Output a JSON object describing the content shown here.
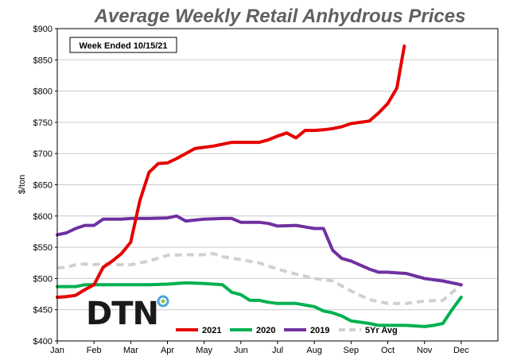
{
  "chart_data": {
    "type": "line",
    "title": "Average Weekly Retail Anhydrous Prices",
    "annotation": "Week Ended 10/15/21",
    "ylabel": "$/ton",
    "xlabel": "",
    "ylim": [
      400,
      900
    ],
    "yticks": [
      "$400",
      "$450",
      "$500",
      "$550",
      "$600",
      "$650",
      "$700",
      "$750",
      "$800",
      "$850",
      "$900"
    ],
    "xticks": [
      "Jan",
      "Feb",
      "Mar",
      "Apr",
      "May",
      "Jun",
      "Jul",
      "Aug",
      "Sep",
      "Oct",
      "Nov",
      "Dec"
    ],
    "grid": "horizontal",
    "legend_position": "bottom-right",
    "series": [
      {
        "name": "2021",
        "color": "#e60000",
        "style": "solid",
        "x": [
          1.0,
          1.25,
          1.5,
          1.75,
          2.0,
          2.25,
          2.5,
          2.75,
          3.0,
          3.25,
          3.5,
          3.75,
          4.0,
          4.25,
          4.5,
          4.75,
          5.0,
          5.25,
          5.5,
          5.75,
          6.0,
          6.25,
          6.5,
          6.75,
          7.0,
          7.25,
          7.5,
          7.75,
          8.0,
          8.25,
          8.5,
          8.75,
          9.0,
          9.25,
          9.5,
          9.75,
          10.0,
          10.25,
          10.45
        ],
        "values": [
          470,
          471,
          473,
          482,
          490,
          518,
          528,
          540,
          558,
          625,
          670,
          684,
          685,
          692,
          700,
          708,
          710,
          712,
          715,
          718,
          718,
          718,
          718,
          722,
          728,
          733,
          725,
          737,
          737,
          738,
          740,
          743,
          748,
          750,
          752,
          765,
          780,
          805,
          872
        ]
      },
      {
        "name": "2020",
        "color": "#00b050",
        "style": "solid",
        "x": [
          1.0,
          1.25,
          1.5,
          1.75,
          2.0,
          2.5,
          3.0,
          3.5,
          4.0,
          4.5,
          5.0,
          5.5,
          5.75,
          6.0,
          6.25,
          6.5,
          6.75,
          7.0,
          7.5,
          8.0,
          8.25,
          8.5,
          8.75,
          9.0,
          9.25,
          9.5,
          9.75,
          10.0,
          10.5,
          11.0,
          11.25,
          11.5,
          11.75,
          12.0
        ],
        "values": [
          487,
          487,
          487,
          490,
          490,
          490,
          490,
          490,
          491,
          493,
          492,
          490,
          478,
          474,
          465,
          465,
          462,
          460,
          460,
          455,
          448,
          445,
          440,
          432,
          430,
          428,
          425,
          425,
          425,
          423,
          425,
          428,
          450,
          470
        ]
      },
      {
        "name": "2019",
        "color": "#7030a0",
        "style": "solid",
        "x": [
          1.0,
          1.25,
          1.5,
          1.75,
          2.0,
          2.25,
          2.5,
          2.75,
          3.0,
          3.5,
          4.0,
          4.25,
          4.5,
          5.0,
          5.5,
          5.75,
          6.0,
          6.5,
          6.75,
          7.0,
          7.5,
          8.0,
          8.25,
          8.5,
          8.75,
          9.0,
          9.5,
          9.75,
          10.0,
          10.5,
          11.0,
          11.25,
          11.5,
          12.0
        ],
        "values": [
          570,
          573,
          580,
          585,
          585,
          595,
          595,
          595,
          596,
          596,
          597,
          600,
          592,
          595,
          596,
          596,
          590,
          590,
          588,
          584,
          585,
          580,
          580,
          545,
          532,
          528,
          515,
          510,
          510,
          508,
          500,
          498,
          496,
          490
        ]
      },
      {
        "name": "5Yr Avg",
        "color": "#d0d0d0",
        "style": "dashed",
        "x": [
          1.0,
          1.25,
          1.5,
          1.75,
          2.0,
          2.25,
          2.5,
          3.0,
          3.5,
          4.0,
          4.5,
          5.0,
          5.25,
          5.5,
          6.0,
          6.5,
          7.0,
          7.5,
          8.0,
          8.5,
          9.0,
          9.5,
          10.0,
          10.5,
          11.0,
          11.5,
          12.0
        ],
        "values": [
          517,
          518,
          522,
          523,
          522,
          524,
          522,
          522,
          528,
          537,
          538,
          538,
          540,
          535,
          530,
          525,
          515,
          507,
          500,
          496,
          480,
          466,
          460,
          460,
          464,
          465,
          490
        ]
      }
    ]
  },
  "logo": {
    "text": "DTN",
    "dot_colors": [
      "#4ea6dc",
      "#8dc63f"
    ]
  },
  "colors": {
    "plot_border": "#000000",
    "grid": "#c8c8c8"
  }
}
